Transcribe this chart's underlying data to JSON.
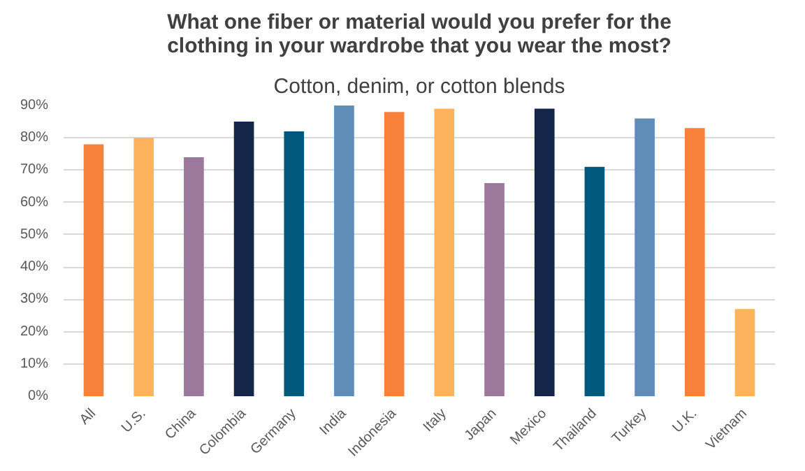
{
  "chart_data": {
    "type": "bar",
    "title": "What one fiber or material would you prefer for the clothing in your wardrobe that you wear the most?",
    "subtitle": "Cotton, denim, or cotton blends",
    "categories": [
      "All",
      "U.S.",
      "China",
      "Colombia",
      "Germany",
      "India",
      "Indonesia",
      "Italy",
      "Japan",
      "Mexico",
      "Thailand",
      "Turkey",
      "U.K.",
      "Vietnam"
    ],
    "values": [
      78,
      80,
      74,
      85,
      82,
      90,
      88,
      89,
      66,
      89,
      71,
      86,
      83,
      27
    ],
    "colors": [
      "#f7803b",
      "#fcb35b",
      "#9c789c",
      "#13264a",
      "#00587c",
      "#5f8db8",
      "#f7803b",
      "#fcb35b",
      "#9c789c",
      "#13264a",
      "#00587c",
      "#5f8db8",
      "#f7803b",
      "#fcb35b"
    ],
    "ylim": [
      0,
      90
    ],
    "yticks": [
      {
        "value": 0,
        "label": "0%"
      },
      {
        "value": 10,
        "label": "10%"
      },
      {
        "value": 20,
        "label": "20%"
      },
      {
        "value": 30,
        "label": "30%"
      },
      {
        "value": 40,
        "label": "40%"
      },
      {
        "value": 50,
        "label": "50%"
      },
      {
        "value": 60,
        "label": "60%"
      },
      {
        "value": 70,
        "label": "70%"
      },
      {
        "value": 80,
        "label": "80%"
      },
      {
        "value": 90,
        "label": "90%"
      }
    ],
    "grid": "y"
  }
}
